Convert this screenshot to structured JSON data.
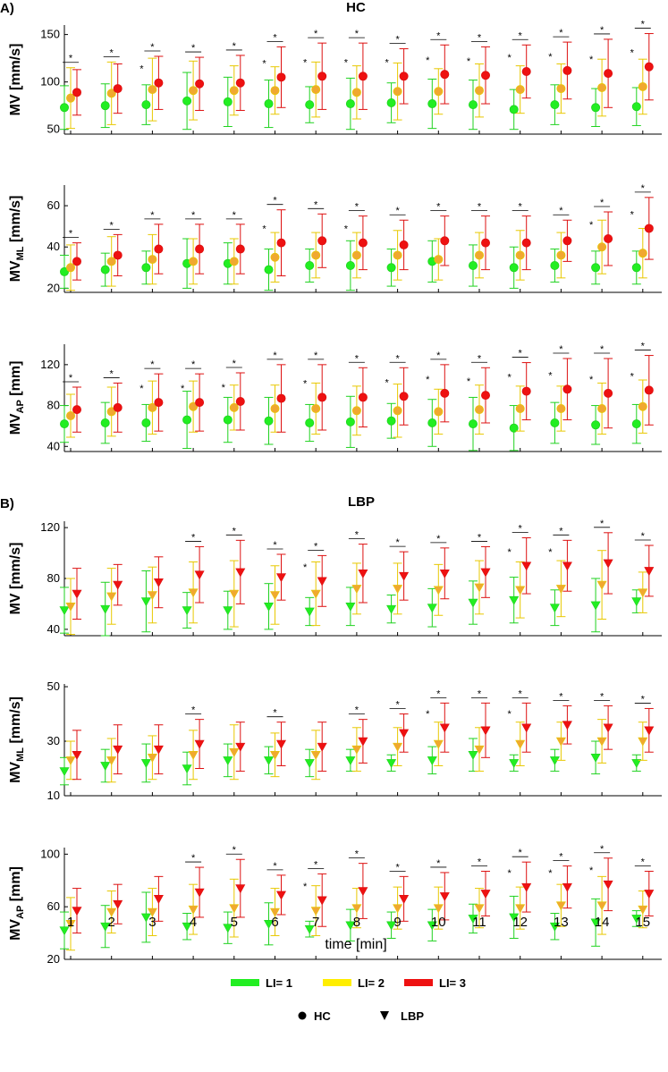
{
  "figure": {
    "panel_A_label": "A)",
    "panel_B_label": "B)",
    "panel_A_title": "HC",
    "panel_B_title": "LBP",
    "xlabel": "time [min]",
    "x_ticks": [
      "1",
      "2",
      "3",
      "4",
      "5",
      "6",
      "7",
      "8",
      "9",
      "10",
      "11",
      "12",
      "13",
      "14",
      "15"
    ],
    "legend": {
      "li": [
        {
          "label": "LI= 1",
          "color": "#22ee22"
        },
        {
          "label": "LI= 2",
          "color": "#ffee00"
        },
        {
          "label": "LI= 3",
          "color": "#ee1111"
        }
      ],
      "groups": [
        {
          "label": "HC",
          "marker": "circle"
        },
        {
          "label": "LBP",
          "marker": "triangle-down"
        }
      ]
    },
    "significance_marker": "*"
  },
  "chart_data": [
    {
      "panel": "A",
      "group": "HC",
      "type": "scatter",
      "marker": "circle",
      "ylabel_main": "MV",
      "ylabel_sub": "",
      "ylabel_unit": " [mm/s]",
      "ylim": [
        45,
        160
      ],
      "yticks": [
        50,
        100,
        150
      ],
      "series": [
        {
          "name": "LI= 1",
          "values": [
            73,
            75,
            76,
            80,
            79,
            77,
            76,
            77,
            78,
            77,
            76,
            71,
            76,
            73,
            74
          ],
          "sd": [
            23,
            23,
            21,
            30,
            26,
            25,
            19,
            27,
            21,
            26,
            26,
            21,
            21,
            20,
            20
          ]
        },
        {
          "name": "LI= 2",
          "values": [
            83,
            88,
            92,
            91,
            91,
            91,
            92,
            89,
            90,
            90,
            91,
            92,
            93,
            94,
            95
          ],
          "sd": [
            32,
            33,
            33,
            31,
            26,
            25,
            29,
            28,
            30,
            24,
            28,
            25,
            26,
            30,
            29
          ]
        },
        {
          "name": "LI= 3",
          "values": [
            89,
            93,
            99,
            98,
            99,
            105,
            106,
            106,
            106,
            108,
            107,
            111,
            112,
            109,
            116
          ],
          "sd": [
            24,
            26,
            28,
            28,
            29,
            32,
            35,
            35,
            29,
            31,
            30,
            28,
            30,
            36,
            35
          ]
        }
      ],
      "significance": [
        [
          1
        ],
        [
          1
        ],
        [
          2
        ],
        [
          1
        ],
        [
          1
        ],
        [
          3
        ],
        [
          2
        ],
        [
          2
        ],
        [
          2
        ],
        [
          2
        ],
        [
          3
        ],
        [
          3
        ],
        [
          3
        ],
        [
          3
        ],
        [
          3
        ]
      ]
    },
    {
      "panel": "A",
      "group": "HC",
      "type": "scatter",
      "marker": "circle",
      "ylabel_main": "MV",
      "ylabel_sub": "ML",
      "ylabel_unit": " [mm/s]",
      "ylim": [
        18,
        70
      ],
      "yticks": [
        20,
        40,
        60
      ],
      "series": [
        {
          "name": "LI= 1",
          "values": [
            28,
            29,
            30,
            32,
            32,
            29,
            31,
            31,
            30,
            33,
            31,
            30,
            31,
            30,
            30
          ],
          "sd": [
            8,
            8,
            8,
            12,
            10,
            10,
            8,
            12,
            9,
            10,
            10,
            10,
            8,
            8,
            8
          ]
        },
        {
          "name": "LI= 2",
          "values": [
            30,
            33,
            34,
            33,
            33,
            35,
            36,
            36,
            36,
            34,
            36,
            36,
            36,
            40,
            37
          ],
          "sd": [
            11,
            12,
            12,
            11,
            11,
            12,
            11,
            11,
            12,
            10,
            11,
            12,
            11,
            13,
            12
          ]
        },
        {
          "name": "LI= 3",
          "values": [
            33,
            36,
            39,
            39,
            39,
            42,
            43,
            42,
            41,
            43,
            42,
            42,
            43,
            44,
            49
          ],
          "sd": [
            9,
            10,
            12,
            12,
            12,
            16,
            13,
            13,
            12,
            12,
            13,
            13,
            10,
            13,
            15
          ]
        }
      ],
      "significance": [
        [
          1
        ],
        [
          1
        ],
        [
          1
        ],
        [
          1
        ],
        [
          1
        ],
        [
          2
        ],
        [
          1
        ],
        [
          2
        ],
        [
          1
        ],
        [
          1
        ],
        [
          1
        ],
        [
          1
        ],
        [
          1
        ],
        [
          2
        ],
        [
          2
        ]
      ]
    },
    {
      "panel": "A",
      "group": "HC",
      "type": "scatter",
      "marker": "circle",
      "ylabel_main": "MV",
      "ylabel_sub": "AP",
      "ylabel_unit": " [mm]",
      "ylim": [
        35,
        140
      ],
      "yticks": [
        40,
        80,
        120
      ],
      "series": [
        {
          "name": "LI= 1",
          "values": [
            62,
            63,
            63,
            66,
            66,
            65,
            63,
            64,
            65,
            63,
            62,
            58,
            63,
            61,
            62
          ],
          "sd": [
            18,
            20,
            18,
            28,
            22,
            23,
            18,
            25,
            17,
            23,
            26,
            22,
            20,
            19,
            19
          ]
        },
        {
          "name": "LI= 2",
          "values": [
            70,
            74,
            78,
            79,
            78,
            77,
            77,
            75,
            75,
            74,
            76,
            77,
            77,
            77,
            79
          ],
          "sd": [
            21,
            24,
            26,
            25,
            22,
            23,
            25,
            24,
            26,
            22,
            24,
            22,
            22,
            25,
            26
          ]
        },
        {
          "name": "LI= 3",
          "values": [
            76,
            78,
            83,
            83,
            84,
            87,
            88,
            88,
            89,
            92,
            90,
            94,
            96,
            92,
            95
          ],
          "sd": [
            22,
            24,
            28,
            28,
            28,
            33,
            32,
            29,
            28,
            28,
            27,
            28,
            30,
            34,
            34
          ]
        }
      ],
      "significance": [
        [
          1
        ],
        [
          1
        ],
        [
          2
        ],
        [
          2
        ],
        [
          2
        ],
        [
          1
        ],
        [
          2
        ],
        [
          1
        ],
        [
          2
        ],
        [
          2
        ],
        [
          3
        ],
        [
          3
        ],
        [
          3
        ],
        [
          3
        ],
        [
          3
        ]
      ]
    },
    {
      "panel": "B",
      "group": "LBP",
      "type": "scatter",
      "marker": "triangle-down",
      "ylabel_main": "MV",
      "ylabel_sub": "",
      "ylabel_unit": " [mm/s]",
      "ylim": [
        35,
        125
      ],
      "yticks": [
        40,
        80,
        120
      ],
      "series": [
        {
          "name": "LI= 1",
          "values": [
            55,
            56,
            62,
            55,
            55,
            58,
            54,
            58,
            56,
            57,
            61,
            63,
            57,
            59,
            62
          ],
          "sd": [
            18,
            21,
            24,
            14,
            15,
            18,
            11,
            15,
            11,
            15,
            17,
            18,
            14,
            21,
            9
          ]
        },
        {
          "name": "LI= 2",
          "values": [
            58,
            66,
            67,
            69,
            68,
            67,
            68,
            72,
            72,
            71,
            73,
            71,
            72,
            75,
            69
          ],
          "sd": [
            22,
            22,
            22,
            24,
            26,
            23,
            25,
            20,
            20,
            20,
            21,
            22,
            22,
            27,
            16
          ]
        },
        {
          "name": "LI= 3",
          "values": [
            68,
            75,
            77,
            83,
            85,
            81,
            78,
            84,
            82,
            84,
            85,
            90,
            90,
            92,
            86
          ],
          "sd": [
            20,
            16,
            20,
            22,
            25,
            18,
            20,
            23,
            19,
            20,
            20,
            22,
            20,
            24,
            20
          ]
        }
      ],
      "significance": [
        [],
        [],
        [],
        [
          1
        ],
        [
          1
        ],
        [
          1
        ],
        [
          2
        ],
        [
          1
        ],
        [
          1
        ],
        [
          1
        ],
        [
          1
        ],
        [
          3
        ],
        [
          3
        ],
        [
          1
        ],
        [
          1
        ]
      ]
    },
    {
      "panel": "B",
      "group": "LBP",
      "type": "scatter",
      "marker": "triangle-down",
      "ylabel_main": "MV",
      "ylabel_sub": "ML",
      "ylabel_unit": " [mm/s]",
      "ylim": [
        10,
        51
      ],
      "yticks": [
        10,
        30,
        50
      ],
      "series": [
        {
          "name": "LI= 1",
          "values": [
            19,
            21,
            22,
            20,
            23,
            23,
            22,
            23,
            22,
            23,
            25,
            22,
            23,
            24,
            22
          ],
          "sd": [
            5,
            6,
            7,
            6,
            6,
            5,
            5,
            4,
            3,
            5,
            6,
            3,
            4,
            6,
            3
          ]
        },
        {
          "name": "LI= 2",
          "values": [
            23,
            23,
            24,
            25,
            26,
            25,
            25,
            27,
            28,
            29,
            27,
            29,
            30,
            30,
            30
          ],
          "sd": [
            7,
            8,
            8,
            9,
            10,
            8,
            9,
            8,
            7,
            8,
            8,
            8,
            7,
            8,
            7
          ]
        },
        {
          "name": "LI= 3",
          "values": [
            25,
            27,
            27,
            29,
            28,
            29,
            28,
            30,
            33,
            35,
            34,
            35,
            36,
            35,
            34
          ],
          "sd": [
            9,
            9,
            9,
            9,
            9,
            8,
            9,
            8,
            7,
            9,
            10,
            9,
            7,
            8,
            8
          ]
        }
      ],
      "significance": [
        [],
        [],
        [],
        [
          1
        ],
        [],
        [
          1
        ],
        [],
        [
          1
        ],
        [
          1
        ],
        [
          2
        ],
        [
          1
        ],
        [
          3
        ],
        [
          1
        ],
        [
          1
        ],
        [
          1
        ]
      ]
    },
    {
      "panel": "B",
      "group": "LBP",
      "type": "scatter",
      "marker": "triangle-down",
      "ylabel_main": "MV",
      "ylabel_sub": "AP",
      "ylabel_unit": " [mm]",
      "ylim": [
        20,
        105
      ],
      "yticks": [
        20,
        60,
        100
      ],
      "series": [
        {
          "name": "LI= 1",
          "values": [
            42,
            45,
            52,
            45,
            44,
            47,
            43,
            46,
            46,
            46,
            51,
            52,
            45,
            48,
            51
          ],
          "sd": [
            14,
            16,
            19,
            10,
            12,
            16,
            6,
            12,
            10,
            12,
            11,
            16,
            10,
            18,
            6
          ]
        },
        {
          "name": "LI= 2",
          "values": [
            47,
            56,
            56,
            58,
            59,
            56,
            57,
            59,
            59,
            59,
            59,
            59,
            61,
            61,
            58
          ],
          "sd": [
            20,
            16,
            18,
            19,
            22,
            18,
            19,
            15,
            16,
            16,
            15,
            16,
            16,
            22,
            14
          ]
        },
        {
          "name": "LI= 3",
          "values": [
            57,
            62,
            66,
            71,
            74,
            69,
            65,
            72,
            66,
            68,
            70,
            75,
            75,
            77,
            70
          ],
          "sd": [
            17,
            15,
            17,
            19,
            22,
            15,
            20,
            21,
            17,
            18,
            17,
            19,
            16,
            20,
            17
          ]
        }
      ],
      "significance": [
        [],
        [],
        [],
        [
          1
        ],
        [
          1
        ],
        [
          1
        ],
        [
          2
        ],
        [
          1
        ],
        [
          1
        ],
        [
          1
        ],
        [
          1
        ],
        [
          2
        ],
        [
          2
        ],
        [
          2
        ],
        [
          1
        ]
      ]
    }
  ]
}
